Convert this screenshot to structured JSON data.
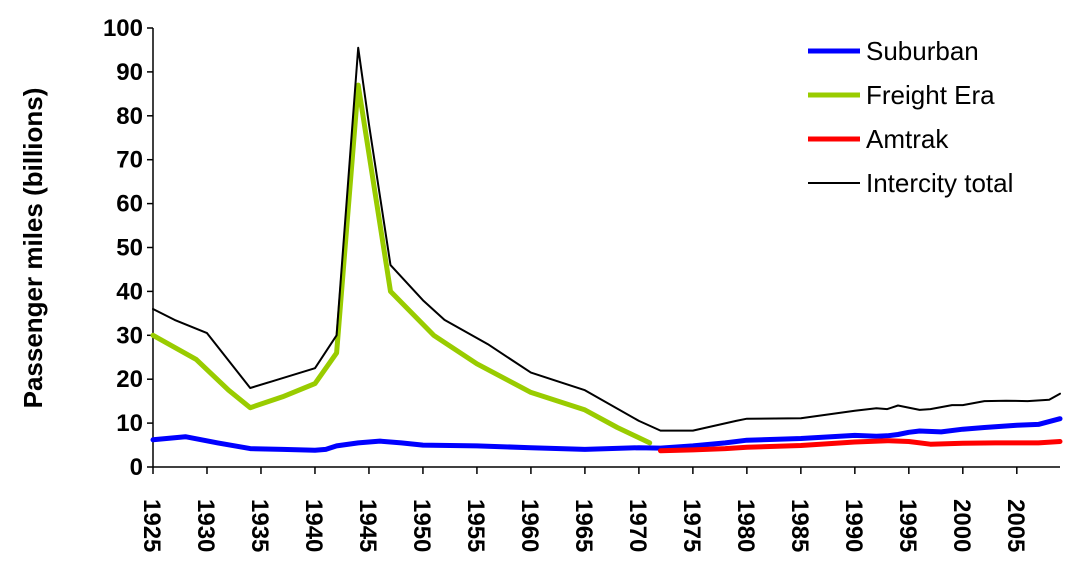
{
  "chart_data": {
    "type": "line",
    "title": "",
    "xlabel": "",
    "ylabel": "Passenger miles (billions)",
    "xlim": [
      1925,
      2009
    ],
    "ylim": [
      0,
      100
    ],
    "yticks": [
      0,
      10,
      20,
      30,
      40,
      50,
      60,
      70,
      80,
      90,
      100
    ],
    "xticks": [
      1925,
      1930,
      1935,
      1940,
      1945,
      1950,
      1955,
      1960,
      1965,
      1970,
      1975,
      1980,
      1985,
      1990,
      1995,
      2000,
      2005
    ],
    "grid": false,
    "legend_position": "top-right",
    "series": [
      {
        "name": "Suburban",
        "color": "#0000ff",
        "x": [
          1925,
          1928,
          1931,
          1934,
          1937,
          1940,
          1941,
          1942,
          1944,
          1946,
          1948,
          1950,
          1955,
          1960,
          1965,
          1970,
          1972,
          1975,
          1978,
          1980,
          1985,
          1990,
          1992,
          1993,
          1994,
          1995,
          1996,
          1998,
          2000,
          2002,
          2005,
          2007,
          2009
        ],
        "y": [
          6.2,
          6.9,
          5.5,
          4.2,
          4.0,
          3.8,
          4.0,
          4.8,
          5.5,
          5.9,
          5.5,
          5.0,
          4.8,
          4.4,
          4.0,
          4.4,
          4.3,
          4.8,
          5.5,
          6.1,
          6.5,
          7.2,
          7.0,
          7.1,
          7.4,
          7.9,
          8.2,
          8.0,
          8.6,
          9.0,
          9.5,
          9.7,
          11.0
        ]
      },
      {
        "name": "Freight Era",
        "color": "#99cc00",
        "x": [
          1925,
          1929,
          1932,
          1934,
          1937,
          1940,
          1942,
          1944,
          1947,
          1951,
          1955,
          1960,
          1965,
          1968,
          1971
        ],
        "y": [
          30,
          24.5,
          17.5,
          13.5,
          16,
          19,
          26,
          87,
          40,
          30,
          23.5,
          17,
          13,
          9,
          5.5
        ]
      },
      {
        "name": "Amtrak",
        "color": "#ff0000",
        "x": [
          1972,
          1975,
          1978,
          1980,
          1985,
          1990,
          1993,
          1995,
          1997,
          2000,
          2003,
          2005,
          2007,
          2009
        ],
        "y": [
          3.7,
          3.9,
          4.2,
          4.5,
          4.9,
          5.7,
          6.0,
          5.8,
          5.2,
          5.4,
          5.5,
          5.5,
          5.5,
          5.8
        ]
      },
      {
        "name": "Intercity total",
        "color": "#000000",
        "x": [
          1925,
          1927,
          1930,
          1934,
          1936,
          1940,
          1942,
          1944,
          1945,
          1947,
          1950,
          1952,
          1956,
          1960,
          1965,
          1970,
          1972,
          1975,
          1979,
          1980,
          1985,
          1990,
          1992,
          1993,
          1994,
          1996,
          1997,
          1999,
          2000,
          2002,
          2004,
          2006,
          2008,
          2009
        ],
        "y": [
          36,
          33.5,
          30.5,
          18,
          19.5,
          22.5,
          30,
          95.5,
          78,
          46,
          38,
          33.5,
          28,
          21.5,
          17.5,
          10.5,
          8.3,
          8.3,
          10.5,
          11,
          11.1,
          12.8,
          13.4,
          13.2,
          14.0,
          13.0,
          13.2,
          14.1,
          14.1,
          15.0,
          15.1,
          15.0,
          15.3,
          16.7
        ]
      }
    ]
  }
}
